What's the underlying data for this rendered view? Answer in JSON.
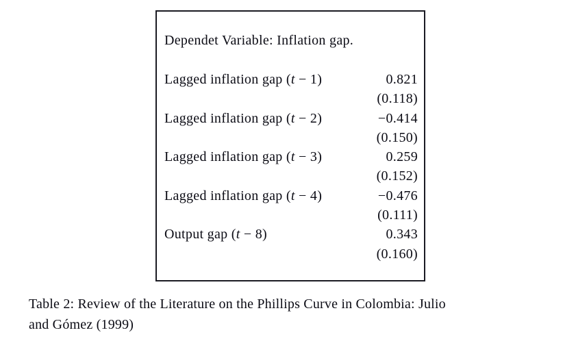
{
  "table": {
    "dependent_variable_line": "Dependet Variable: Inflation gap.",
    "rows": [
      {
        "label_pre": "Lagged inflation gap (",
        "label_var": "t",
        "label_post": " − 1)",
        "coefficient": "0.821",
        "std_error": "(0.118)"
      },
      {
        "label_pre": "Lagged inflation gap (",
        "label_var": "t",
        "label_post": " − 2)",
        "coefficient": "−0.414",
        "std_error": "(0.150)"
      },
      {
        "label_pre": "Lagged inflation gap (",
        "label_var": "t",
        "label_post": " − 3)",
        "coefficient": "0.259",
        "std_error": "(0.152)"
      },
      {
        "label_pre": "Lagged inflation gap (",
        "label_var": "t",
        "label_post": " − 4)",
        "coefficient": "−0.476",
        "std_error": "(0.111)"
      },
      {
        "label_pre": "Output gap (",
        "label_var": "t",
        "label_post": " − 8)",
        "coefficient": "0.343",
        "std_error": "(0.160)"
      }
    ]
  },
  "caption": {
    "line1": "Table 2: Review of the Literature on the Phillips Curve in Colombia: Julio",
    "line2": "and Gómez (1999)"
  },
  "colors": {
    "background": "#ffffff",
    "text": "#0b0b14",
    "border": "#1a1a22"
  }
}
